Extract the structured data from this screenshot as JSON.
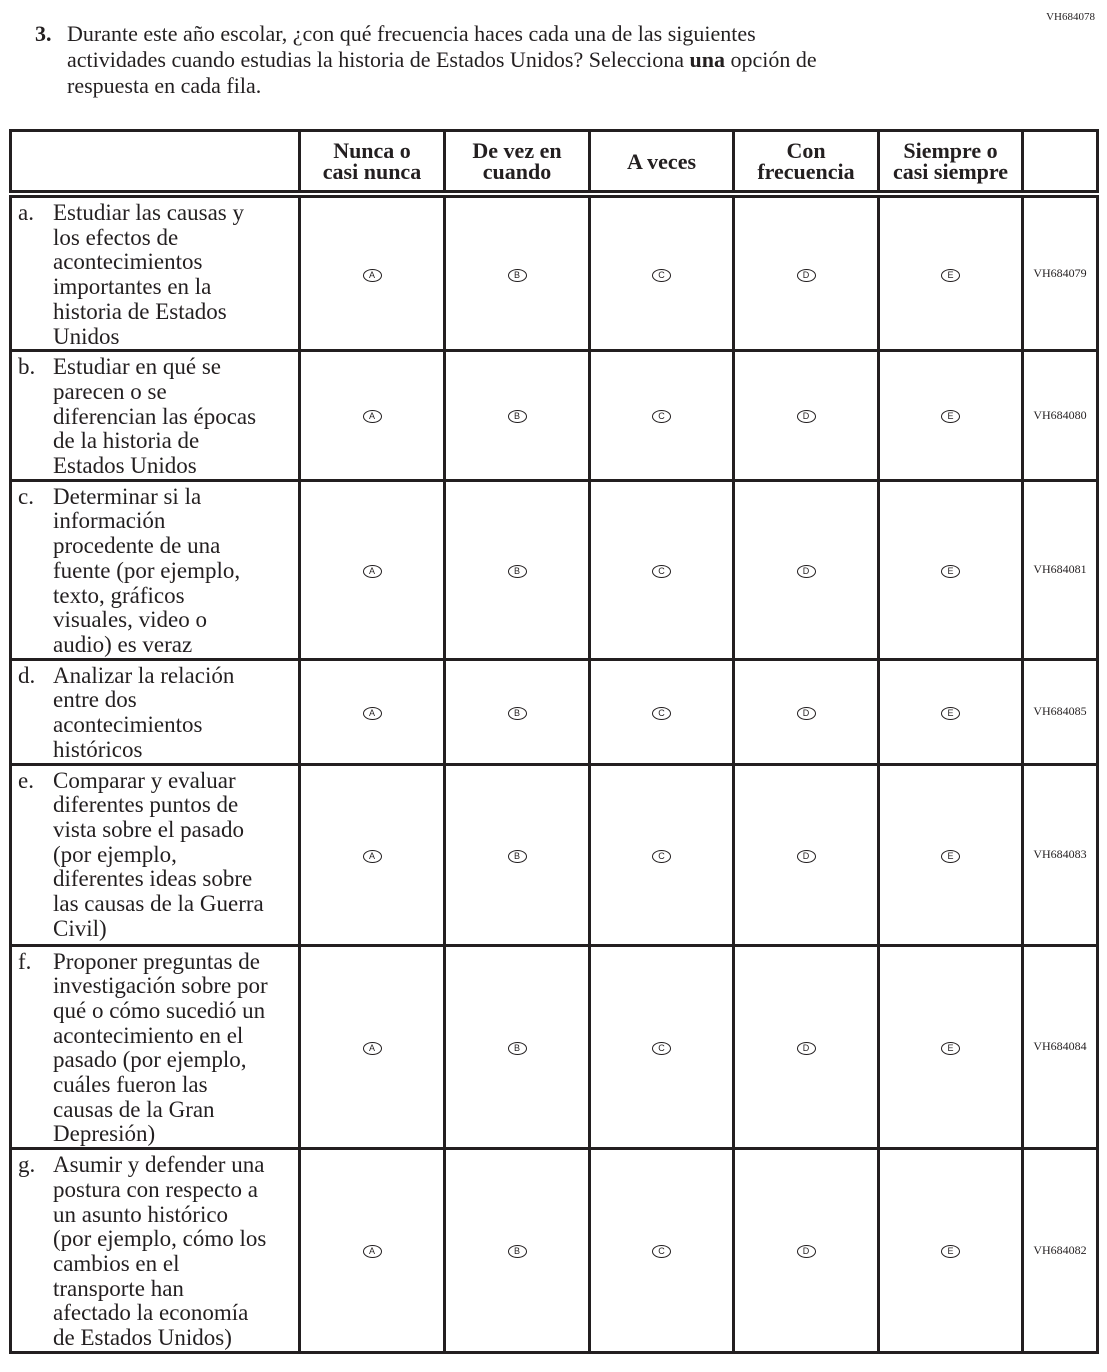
{
  "item_id": "VH684078",
  "question": {
    "number": "3.",
    "lines": [
      [
        "Durante este año escolar, ¿con qué frecuencia haces cada una de las siguientes"
      ],
      [
        "actividades cuando estudias la historia de Estados Unidos? Selecciona ",
        "una",
        " opción de"
      ],
      [
        "respuesta en cada fila."
      ]
    ]
  },
  "columns": [
    "Nunca o\ncasi nunca",
    "De vez en\ncuando",
    "A veces",
    "Con\nfrecuencia",
    "Siempre o\ncasi siempre"
  ],
  "bubbles": [
    "A",
    "B",
    "C",
    "D",
    "E"
  ],
  "rows": [
    {
      "letter": "a.",
      "lines": [
        "Estudiar las causas y",
        "los efectos de",
        "acontecimientos",
        "importantes en la",
        "historia de Estados",
        "Unidos"
      ],
      "code": "VH684079"
    },
    {
      "letter": "b.",
      "lines": [
        "Estudiar en qué se",
        "parecen o se",
        "diferencian las épocas",
        "de la historia de",
        "Estados Unidos"
      ],
      "code": "VH684080"
    },
    {
      "letter": "c.",
      "lines": [
        "Determinar si la",
        "información",
        "procedente de una",
        "fuente (por ejemplo,",
        "texto, gráficos",
        "visuales, video o",
        "audio) es veraz"
      ],
      "code": "VH684081"
    },
    {
      "letter": "d.",
      "lines": [
        "Analizar la relación",
        "entre dos",
        "acontecimientos",
        "históricos"
      ],
      "code": "VH684085"
    },
    {
      "letter": "e.",
      "lines": [
        "Comparar y evaluar",
        "diferentes puntos de",
        "vista sobre el pasado",
        "(por ejemplo,",
        "diferentes ideas sobre",
        "las causas de la Guerra",
        "Civil)"
      ],
      "code": "VH684083"
    },
    {
      "letter": "f.",
      "lines": [
        "Proponer preguntas de",
        "investigación sobre por",
        "qué o cómo sucedió un",
        "acontecimiento en el",
        "pasado (por ejemplo,",
        "cuáles fueron las",
        "causas de la Gran",
        "Depresión)"
      ],
      "code": "VH684084"
    },
    {
      "letter": "g.",
      "lines": [
        "Asumir y defender una",
        "postura con respecto a",
        "un asunto histórico",
        "(por ejemplo, cómo los",
        "cambios en el",
        "transporte han",
        "afectado la economía",
        "de Estados Unidos)"
      ],
      "code": "VH684082"
    }
  ]
}
